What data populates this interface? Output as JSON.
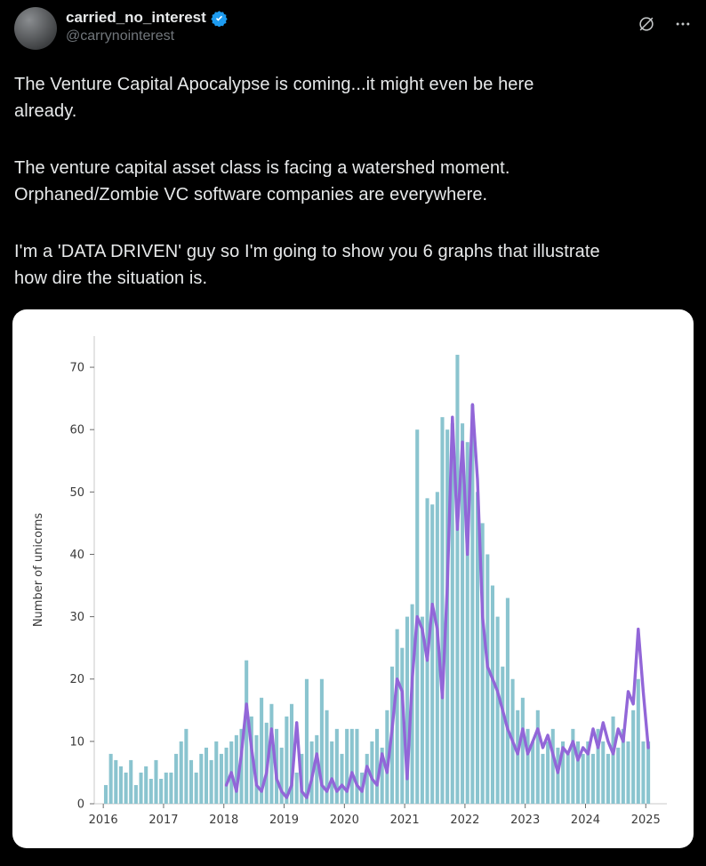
{
  "colors": {
    "background": "#000000",
    "text_primary": "#e7e9ea",
    "text_secondary": "#71767b",
    "verified_blue": "#1d9bf0",
    "card_background": "#ffffff",
    "bar_color": "#8ac4cf",
    "line_color": "#9266d8",
    "axis_text": "#3a3a3a"
  },
  "header": {
    "display_name": "carried_no_interest",
    "handle": "@carrynointerest",
    "verified": true,
    "icons": [
      "grok-slashed-circle-icon",
      "more-ellipsis-icon"
    ]
  },
  "tweet": {
    "paragraphs": [
      [
        "The Venture Capital Apocalypse is coming...it might even be here",
        "already."
      ],
      [
        "The venture capital asset class is facing a watershed moment.",
        "Orphaned/Zombie VC software companies are everywhere."
      ],
      [
        "I'm a 'DATA DRIVEN' guy so I'm going to show you 6 graphs that illustrate",
        "how dire the situation is."
      ]
    ]
  },
  "chart_data": {
    "type": "bar",
    "title": "",
    "xlabel": "",
    "ylabel": "Number of unicorns",
    "legend": "none",
    "grid": false,
    "x_ticks": [
      2016,
      2017,
      2018,
      2019,
      2020,
      2021,
      2022,
      2023,
      2024,
      2025
    ],
    "y_ticks": [
      0,
      10,
      20,
      30,
      40,
      50,
      60,
      70
    ],
    "x_range": [
      2015.85,
      2025.35
    ],
    "y_range": [
      0,
      75
    ],
    "bars": {
      "cadence": "monthly",
      "x_start_year": 2016,
      "values": [
        3,
        8,
        7,
        6,
        5,
        7,
        3,
        5,
        6,
        4,
        7,
        4,
        5,
        5,
        8,
        10,
        12,
        7,
        5,
        8,
        9,
        7,
        10,
        8,
        9,
        10,
        11,
        12,
        23,
        14,
        11,
        17,
        13,
        16,
        12,
        9,
        14,
        16,
        5,
        8,
        20,
        10,
        11,
        20,
        15,
        10,
        12,
        8,
        12,
        12,
        12,
        5,
        8,
        10,
        12,
        9,
        15,
        22,
        28,
        25,
        30,
        32,
        60,
        30,
        49,
        48,
        50,
        62,
        60,
        61,
        72,
        61,
        58,
        64,
        50,
        45,
        40,
        35,
        30,
        22,
        33,
        20,
        15,
        17,
        12,
        10,
        15,
        8,
        10,
        12,
        9,
        10,
        8,
        12,
        10,
        8,
        10,
        8,
        12,
        10,
        8,
        14,
        9,
        12,
        10,
        15,
        20,
        10,
        10
      ]
    },
    "line": {
      "cadence": "monthly",
      "x_start_year": 2018,
      "values": [
        3,
        5,
        2,
        8,
        16,
        9,
        3,
        2,
        5,
        12,
        4,
        2,
        1,
        3,
        13,
        2,
        1,
        4,
        8,
        3,
        2,
        4,
        2,
        3,
        2,
        5,
        3,
        2,
        6,
        4,
        3,
        8,
        5,
        12,
        20,
        18,
        4,
        20,
        30,
        28,
        23,
        32,
        28,
        17,
        35,
        62,
        44,
        58,
        40,
        64,
        52,
        30,
        22,
        20,
        18,
        15,
        12,
        10,
        8,
        12,
        8,
        10,
        12,
        9,
        11,
        8,
        5,
        9,
        8,
        10,
        7,
        9,
        8,
        12,
        9,
        13,
        10,
        8,
        12,
        10,
        18,
        16,
        28,
        18,
        9
      ]
    }
  }
}
